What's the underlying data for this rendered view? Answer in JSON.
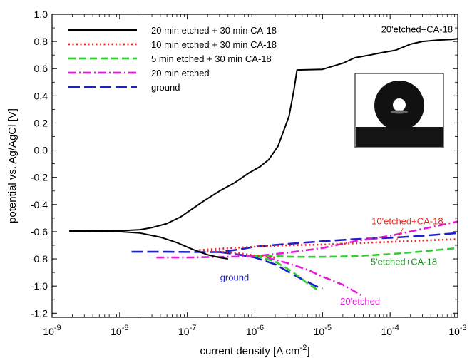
{
  "chart_data": {
    "type": "line",
    "title": "",
    "xlabel": "current density [A cm",
    "xlabel_sup": "-2",
    "xlabel_close": "]",
    "ylabel": "potential vs. Ag/AgCl [V]",
    "xscale": "log",
    "xlim": [
      1e-09,
      0.001
    ],
    "ylim": [
      -1.23,
      1.0
    ],
    "x_tick_labels": [
      {
        "base": "10",
        "exp": "-9"
      },
      {
        "base": "10",
        "exp": "-8"
      },
      {
        "base": "10",
        "exp": "-7"
      },
      {
        "base": "10",
        "exp": "-6"
      },
      {
        "base": "10",
        "exp": "-5"
      },
      {
        "base": "10",
        "exp": "-4"
      },
      {
        "base": "10",
        "exp": "-3"
      }
    ],
    "x_tick_values": [
      1e-09,
      1e-08,
      1e-07,
      1e-06,
      1e-05,
      0.0001,
      0.001
    ],
    "y_ticks": [
      1.0,
      0.8,
      0.6,
      0.4,
      0.2,
      0.0,
      -0.2,
      -0.4,
      -0.6,
      -0.8,
      -1.0,
      -1.2
    ],
    "y_tick_labels": [
      "1.0",
      "0.8",
      "0.6",
      "0.4",
      "0.2",
      "0.0",
      "-0.2",
      "-0.4",
      "-0.6",
      "-0.8",
      "-1.0",
      "-1.2"
    ],
    "grid": false,
    "legend_position": "top-left",
    "series": [
      {
        "name": "20 min etched + 30 min CA-18",
        "color": "#000000",
        "style": "solid",
        "branches": [
          [
            [
              1.8e-09,
              -0.595
            ],
            [
              5e-09,
              -0.595
            ],
            [
              1e-08,
              -0.593
            ],
            [
              2e-08,
              -0.585
            ],
            [
              3e-08,
              -0.57
            ],
            [
              5e-08,
              -0.54
            ],
            [
              8e-08,
              -0.49
            ],
            [
              1.2e-07,
              -0.43
            ],
            [
              1.8e-07,
              -0.37
            ],
            [
              3e-07,
              -0.3
            ],
            [
              5e-07,
              -0.24
            ],
            [
              8e-07,
              -0.17
            ],
            [
              1.2e-06,
              -0.12
            ],
            [
              1.6e-06,
              -0.07
            ],
            [
              2.2e-06,
              0.03
            ],
            [
              3.2e-06,
              0.25
            ],
            [
              3.8e-06,
              0.45
            ],
            [
              4.2e-06,
              0.59
            ],
            [
              1e-05,
              0.595
            ],
            [
              2e-05,
              0.64
            ],
            [
              3e-05,
              0.68
            ],
            [
              5e-05,
              0.7
            ],
            [
              8e-05,
              0.72
            ],
            [
              0.00012,
              0.735
            ],
            [
              0.0002,
              0.78
            ],
            [
              0.0003,
              0.8
            ],
            [
              0.0005,
              0.81
            ],
            [
              0.0008,
              0.815
            ],
            [
              0.001,
              0.82
            ]
          ],
          [
            [
              1.8e-09,
              -0.595
            ],
            [
              1e-08,
              -0.6
            ],
            [
              2e-08,
              -0.61
            ],
            [
              4e-08,
              -0.64
            ],
            [
              7e-08,
              -0.68
            ],
            [
              1.2e-07,
              -0.73
            ],
            [
              2e-07,
              -0.77
            ],
            [
              3e-07,
              -0.79
            ],
            [
              4e-07,
              -0.8
            ]
          ]
        ]
      },
      {
        "name": "10 min etched + 30 min CA-18",
        "color": "#e8281e",
        "style": "dotted",
        "branches": [
          [
            [
              1.5e-07,
              -0.735
            ],
            [
              3e-07,
              -0.725
            ],
            [
              1e-06,
              -0.71
            ],
            [
              3e-06,
              -0.7
            ],
            [
              1e-05,
              -0.695
            ],
            [
              3e-05,
              -0.685
            ],
            [
              0.0001,
              -0.675
            ],
            [
              0.0003,
              -0.665
            ],
            [
              0.001,
              -0.655
            ]
          ],
          [
            [
              1.5e-07,
              -0.735
            ],
            [
              3e-07,
              -0.745
            ],
            [
              6e-07,
              -0.76
            ],
            [
              1e-06,
              -0.775
            ],
            [
              2e-06,
              -0.79
            ]
          ]
        ]
      },
      {
        "name": "5 min etched + 30 min CA-18",
        "color": "#33cc33",
        "style": "dashed",
        "branches": [
          [
            [
              1e-06,
              -0.775
            ],
            [
              2e-06,
              -0.78
            ],
            [
              4e-06,
              -0.785
            ],
            [
              1e-05,
              -0.785
            ],
            [
              3e-05,
              -0.78
            ],
            [
              0.0001,
              -0.765
            ],
            [
              0.0003,
              -0.745
            ],
            [
              0.001,
              -0.72
            ]
          ],
          [
            [
              1e-06,
              -0.775
            ],
            [
              2e-06,
              -0.82
            ],
            [
              3e-06,
              -0.87
            ],
            [
              4.5e-06,
              -0.93
            ],
            [
              6e-06,
              -0.98
            ],
            [
              8e-06,
              -1.02
            ],
            [
              9e-06,
              -1.03
            ]
          ]
        ]
      },
      {
        "name": "20 min etched",
        "color": "#e619d9",
        "style": "dashdot",
        "branches": [
          [
            [
              3.5e-08,
              -0.79
            ],
            [
              1e-07,
              -0.79
            ],
            [
              3e-07,
              -0.785
            ],
            [
              1e-06,
              -0.78
            ],
            [
              3e-06,
              -0.755
            ],
            [
              1e-05,
              -0.72
            ],
            [
              3e-05,
              -0.67
            ],
            [
              0.0001,
              -0.63
            ],
            [
              0.0003,
              -0.58
            ],
            [
              0.001,
              -0.525
            ]
          ],
          [
            [
              1.5e-06,
              -0.79
            ],
            [
              3e-06,
              -0.83
            ],
            [
              6e-06,
              -0.88
            ],
            [
              1e-05,
              -0.93
            ],
            [
              2e-05,
              -0.99
            ],
            [
              3e-05,
              -1.04
            ],
            [
              4e-05,
              -1.075
            ]
          ]
        ]
      },
      {
        "name": "ground",
        "color": "#1f1fc8",
        "style": "longdash",
        "branches": [
          [
            [
              1.5e-08,
              -0.748
            ],
            [
              5e-08,
              -0.748
            ],
            [
              1.5e-07,
              -0.75
            ],
            [
              3e-07,
              -0.75
            ],
            [
              6e-07,
              -0.73
            ],
            [
              1e-06,
              -0.71
            ],
            [
              3e-06,
              -0.69
            ],
            [
              1e-05,
              -0.67
            ],
            [
              3e-05,
              -0.655
            ],
            [
              0.0001,
              -0.645
            ],
            [
              0.0003,
              -0.63
            ],
            [
              0.001,
              -0.61
            ]
          ],
          [
            [
              3e-07,
              -0.75
            ],
            [
              6e-07,
              -0.77
            ],
            [
              1e-06,
              -0.79
            ],
            [
              2e-06,
              -0.84
            ],
            [
              3e-06,
              -0.89
            ],
            [
              5e-06,
              -0.95
            ],
            [
              8e-06,
              -1.0
            ],
            [
              1e-05,
              -1.02
            ]
          ]
        ]
      }
    ],
    "annotations": [
      {
        "text": "20'etched+CA-18",
        "color": "#000000",
        "x": 0.00025,
        "y": 0.865
      },
      {
        "text": "10'etched+CA-18",
        "color": "#e8281e",
        "x": 0.00018,
        "y": -0.545
      },
      {
        "text": "5'etched+CA-18",
        "color": "#1f8f1f",
        "x": 0.00016,
        "y": -0.845
      },
      {
        "text": "ground",
        "color": "#1f1fc8",
        "x": 5e-07,
        "y": -0.96
      },
      {
        "text": "20'etched",
        "color": "#e619d9",
        "x": 3.6e-05,
        "y": -1.135
      }
    ],
    "leader_line": {
      "color": "#e8281e",
      "from": [
        0.000155,
        -0.575
      ],
      "to": [
        0.000125,
        -0.66
      ]
    }
  }
}
